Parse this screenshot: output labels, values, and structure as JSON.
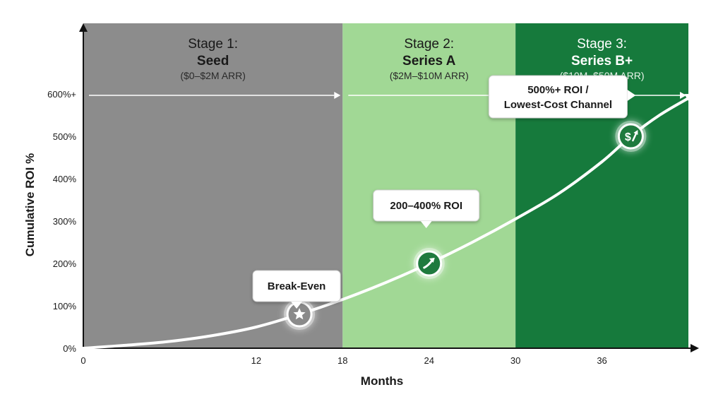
{
  "chart_data": {
    "type": "area",
    "xlabel": "Months",
    "ylabel": "Cumulative ROI %",
    "xlim": [
      0,
      42
    ],
    "ylim": [
      0,
      600
    ],
    "x_ticks": [
      0,
      12,
      18,
      24,
      30,
      36
    ],
    "y_ticks": [
      {
        "value": 0,
        "label": "0%"
      },
      {
        "value": 100,
        "label": "100%"
      },
      {
        "value": 200,
        "label": "200%"
      },
      {
        "value": 300,
        "label": "300%"
      },
      {
        "value": 400,
        "label": "400%"
      },
      {
        "value": 500,
        "label": "500%"
      },
      {
        "value": 600,
        "label": "600%+"
      }
    ],
    "stages": [
      {
        "line1": "Stage 1:",
        "line2": "Seed",
        "line3": "($0–$2M ARR)",
        "x_start": 0,
        "x_end": 18,
        "color": "#8c8c8c"
      },
      {
        "line1": "Stage 2:",
        "line2": "Series A",
        "line3": "($2M–$10M ARR)",
        "x_start": 18,
        "x_end": 30,
        "color": "#a1d895"
      },
      {
        "line1": "Stage 3:",
        "line2": "Series B+",
        "line3": "($10M–$50M ARR)",
        "x_start": 30,
        "x_end": 42,
        "color": "#167a3c"
      }
    ],
    "series": [
      {
        "x": [
          0,
          3,
          6,
          9,
          12,
          15,
          18,
          21,
          24,
          27,
          30,
          33,
          36,
          38,
          40,
          42
        ],
        "values": [
          0,
          7,
          16,
          30,
          50,
          80,
          115,
          155,
          200,
          250,
          305,
          365,
          440,
          500,
          550,
          590
        ],
        "color": "#ffffff"
      }
    ],
    "annotations": [
      {
        "text": "Break-Even",
        "x": 15,
        "y": 80,
        "icon": "star-icon"
      },
      {
        "text": "200–400% ROI",
        "x": 24,
        "y": 200,
        "icon": "trend-up-arrow-icon"
      },
      {
        "text": "500%+ ROI /",
        "text2": "Lowest-Cost Channel",
        "x": 38,
        "y": 500,
        "icon": "dollar-growth-icon"
      }
    ]
  }
}
